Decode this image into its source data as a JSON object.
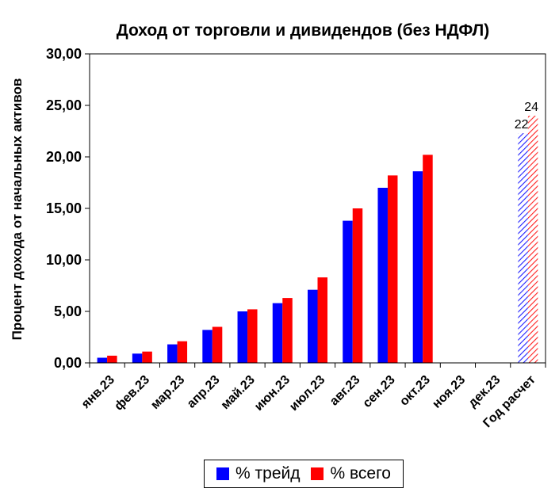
{
  "chart_data": {
    "type": "bar",
    "title": "Доход от торговли и дивидендов (без НДФЛ)",
    "xlabel": "",
    "ylabel": "Процент дохода от начальных активов",
    "ylim": [
      0,
      30
    ],
    "yticks": [
      "0,00",
      "5,00",
      "10,00",
      "15,00",
      "20,00",
      "25,00",
      "30,00"
    ],
    "categories": [
      "янв.23",
      "фев.23",
      "мар.23",
      "апр.23",
      "май.23",
      "июн.23",
      "июл.23",
      "авг.23",
      "сен.23",
      "окт.23",
      "ноя.23",
      "дек.23",
      "Год расчет"
    ],
    "series": [
      {
        "name": "% трейд",
        "color": "#0000FF",
        "values": [
          0.5,
          0.9,
          1.8,
          3.2,
          5.0,
          5.8,
          7.1,
          13.8,
          17.0,
          18.6,
          null,
          null,
          22.3
        ]
      },
      {
        "name": "% всего",
        "color": "#FF0000",
        "values": [
          0.7,
          1.1,
          2.1,
          3.5,
          5.2,
          6.3,
          8.3,
          15.0,
          18.2,
          20.2,
          null,
          null,
          24.0
        ]
      }
    ],
    "hatched_category": "Год расчет",
    "data_labels": {
      "Год расчет": [
        "22",
        "24"
      ]
    },
    "grid": false,
    "legend_position": "bottom"
  }
}
